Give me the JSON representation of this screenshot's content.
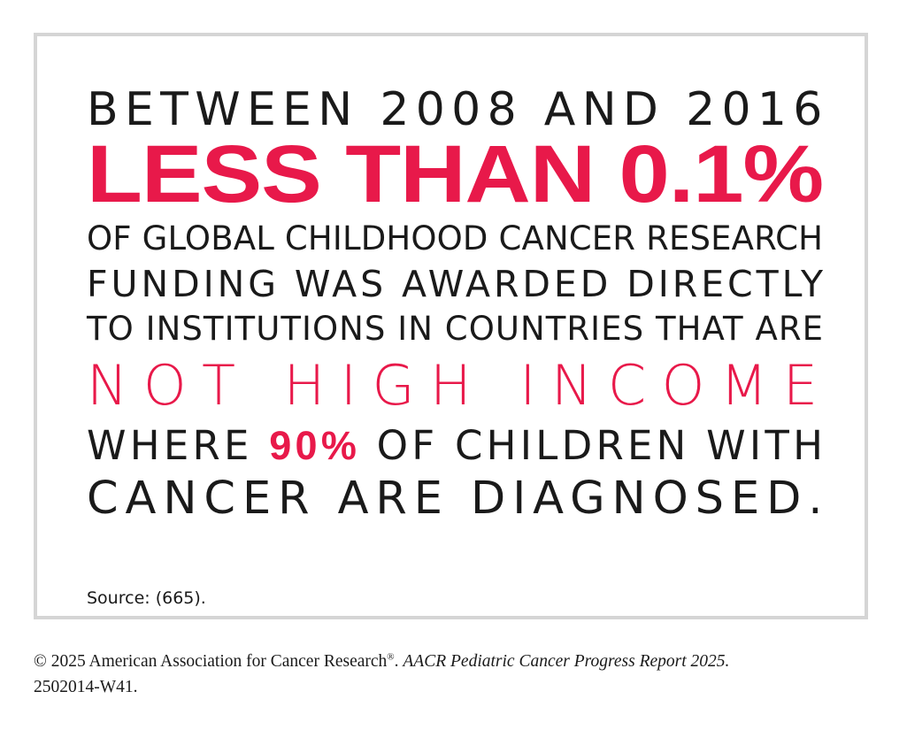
{
  "infographic": {
    "line1": "BETWEEN 2008 AND 2016",
    "line2": "LESS THAN 0.1%",
    "line3": "OF GLOBAL CHILDHOOD CANCER RESEARCH",
    "line4": "FUNDING WAS AWARDED DIRECTLY",
    "line5": "TO INSTITUTIONS IN COUNTRIES THAT ARE",
    "line6": "NOT HIGH INCOME",
    "line7_pre": "WHERE ",
    "line7_highlight": "90%",
    "line7_post": " OF CHILDREN WITH",
    "line8": "CANCER ARE DIAGNOSED.",
    "source": "Source: (665)."
  },
  "footer": {
    "copyright_prefix": "© 2025 American Association for Cancer Research",
    "registered_mark": "®",
    "separator": ". ",
    "report_title": "AACR Pediatric Cancer Progress Report 2025.",
    "code": "2502014-W41."
  },
  "colors": {
    "accent": "#e8194a",
    "text": "#1a1a1a",
    "frame_border": "#d5d5d5"
  }
}
